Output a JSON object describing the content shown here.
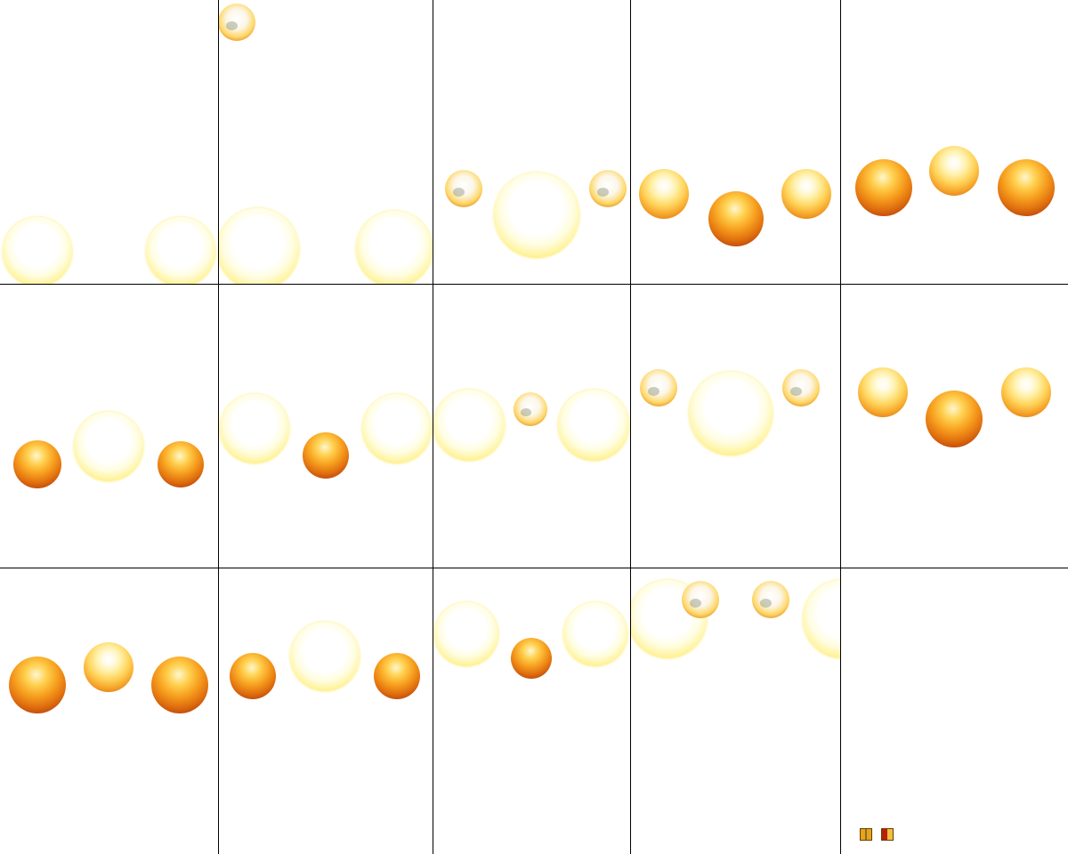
{
  "sprite_sheet": {
    "background": "#ffffff",
    "grid_line_color": "#000000",
    "rows": 3,
    "columns": 5,
    "frame_count": 14,
    "frames": [
      {
        "frame": 1,
        "orbs": [
          "glow",
          "glow"
        ]
      },
      {
        "frame": 2,
        "orbs": [
          "glow",
          "tiny",
          "glow"
        ]
      },
      {
        "frame": 3,
        "orbs": [
          "tiny",
          "glow",
          "tiny"
        ]
      },
      {
        "frame": 4,
        "orbs": [
          "warm",
          "hot",
          "warm"
        ]
      },
      {
        "frame": 5,
        "orbs": [
          "hot",
          "warm",
          "hot"
        ]
      },
      {
        "frame": 6,
        "orbs": [
          "hot",
          "glow",
          "hot"
        ]
      },
      {
        "frame": 7,
        "orbs": [
          "glow",
          "hot",
          "glow"
        ]
      },
      {
        "frame": 8,
        "orbs": [
          "glow",
          "tiny",
          "glow"
        ]
      },
      {
        "frame": 9,
        "orbs": [
          "tiny",
          "glow",
          "tiny"
        ]
      },
      {
        "frame": 10,
        "orbs": [
          "warm",
          "hot",
          "warm"
        ]
      },
      {
        "frame": 11,
        "orbs": [
          "hot",
          "warm",
          "hot"
        ]
      },
      {
        "frame": 12,
        "orbs": [
          "hot",
          "glow",
          "hot"
        ]
      },
      {
        "frame": 13,
        "orbs": [
          "glow",
          "hot",
          "glow"
        ]
      },
      {
        "frame": 14,
        "orbs": [
          "glow",
          "tiny",
          "tiny",
          "glow"
        ]
      }
    ],
    "palette": {
      "glow": "#fff5a8",
      "warm": "#ffd35a",
      "hot": "#e0700f",
      "tiny": "#e3861a"
    },
    "icons": [
      "frame-tile-icon-a",
      "frame-tile-icon-b"
    ]
  }
}
